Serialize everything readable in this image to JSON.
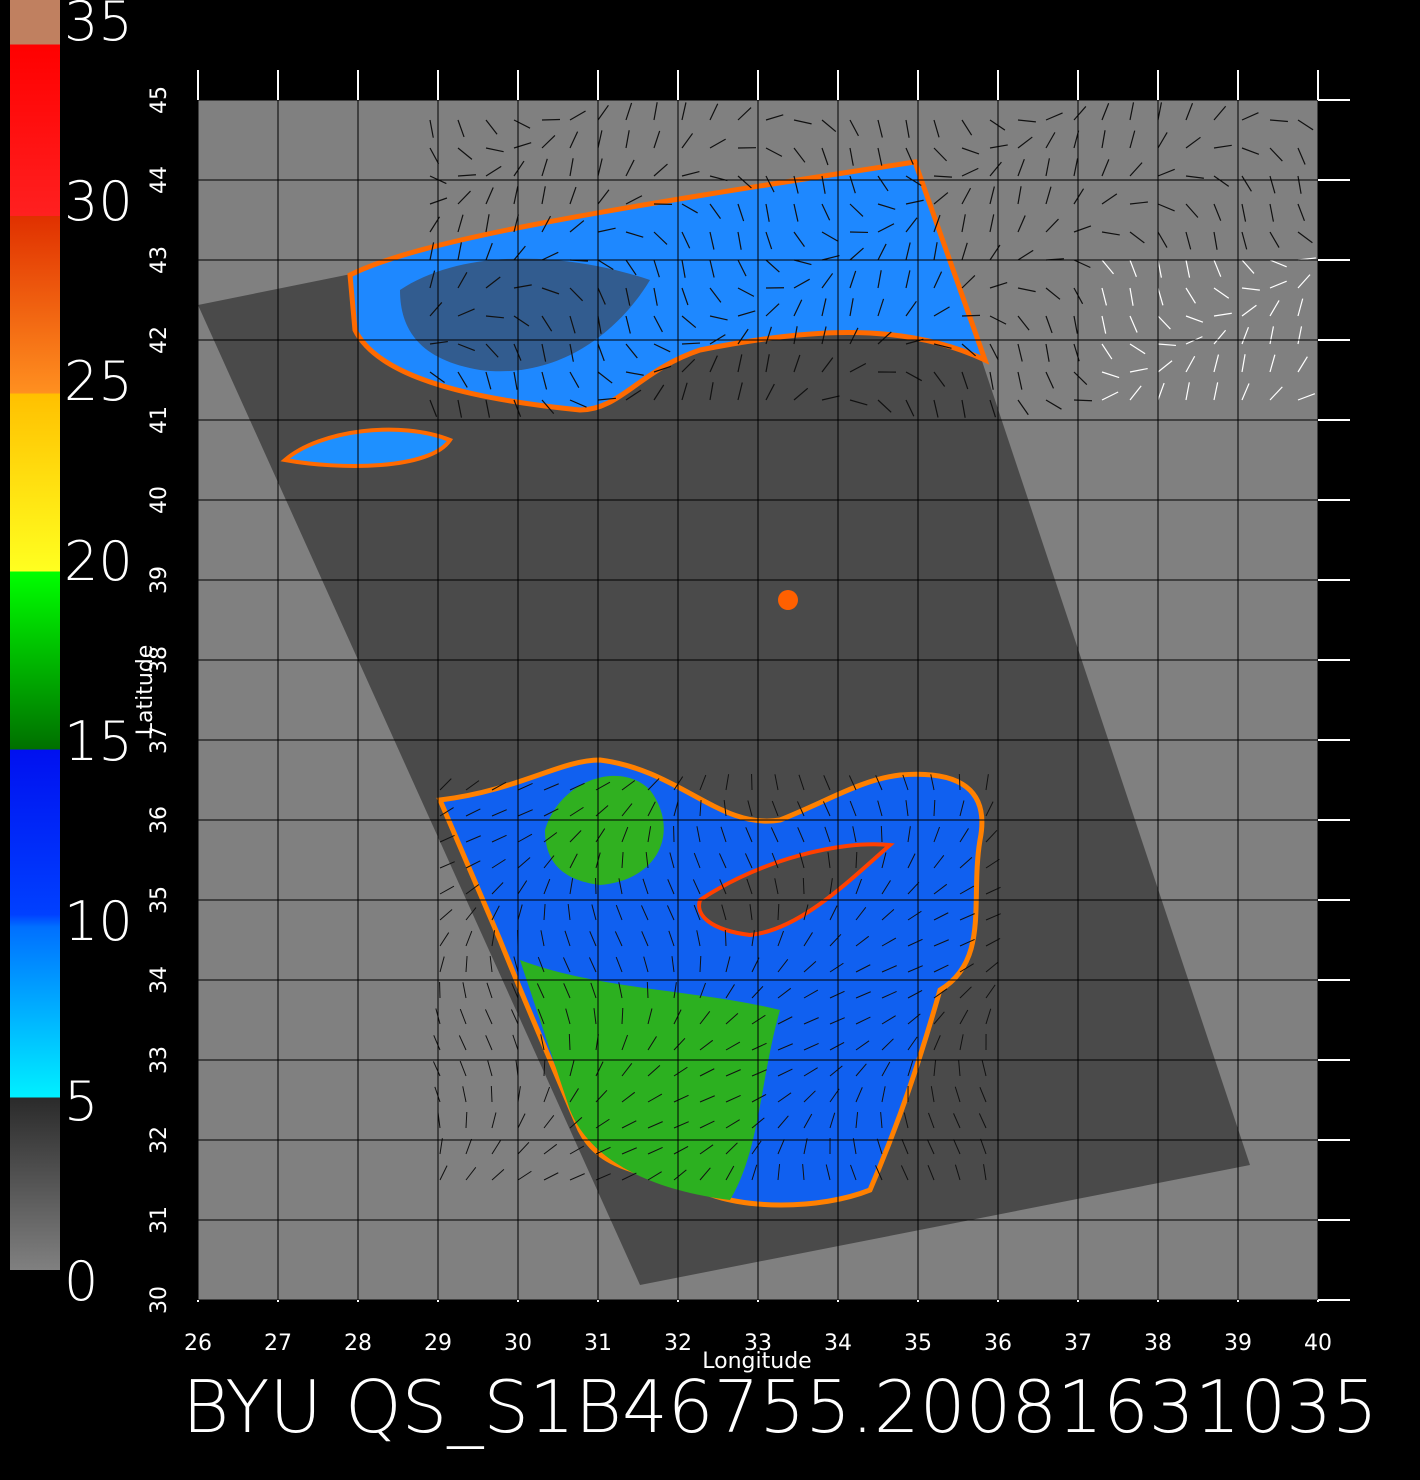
{
  "colorbar": {
    "labels": [
      0,
      5,
      10,
      15,
      20,
      25,
      30,
      35
    ]
  },
  "map": {
    "x_axis": {
      "title": "Longitude",
      "ticks": [
        26,
        27,
        28,
        29,
        30,
        31,
        32,
        33,
        34,
        35,
        36,
        37,
        38,
        39,
        40
      ]
    },
    "y_axis": {
      "title": "Latitude",
      "ticks": [
        30,
        31,
        32,
        33,
        34,
        35,
        36,
        37,
        38,
        39,
        40,
        41,
        42,
        43,
        44,
        45
      ]
    }
  },
  "footer": {
    "title": "BYU QS_S1B46755.20081631035"
  }
}
